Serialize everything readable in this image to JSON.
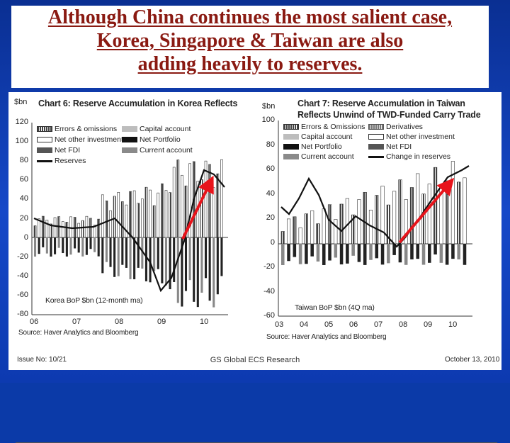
{
  "slide": {
    "title_lines": [
      "Although China continues the most salient case,",
      "Korea, Singapore & Taiwan are also",
      "adding heavily to reserves."
    ]
  },
  "korea": {
    "title": "Chart 6: Reserve Accumulation in Korea Reflects",
    "unit": "$bn",
    "y_ticks": [
      "120",
      "100",
      "80",
      "60",
      "40",
      "20",
      "0",
      "-20",
      "-40",
      "-60",
      "-80"
    ],
    "x_ticks": [
      "06",
      "07",
      "08",
      "09",
      "10"
    ],
    "legend": [
      "Errors & omissions",
      "Net other investment",
      "Net FDI",
      "Reserves",
      "Capital account",
      "Net Portfolio",
      "Current account"
    ],
    "inner_label": "Korea BoP $bn (12-month ma)",
    "source": "Source: Haver Analytics and Bloomberg"
  },
  "taiwan": {
    "title_line1": "Chart 7: Reserve Accumulation in Taiwan",
    "title_line2": "Reflects Unwind of TWD-Funded Carry Trade",
    "unit": "$bn",
    "y_ticks": [
      "100",
      "80",
      "60",
      "40",
      "20",
      "0",
      "-20",
      "-40",
      "-60"
    ],
    "x_ticks": [
      "03",
      "04",
      "05",
      "06",
      "07",
      "08",
      "09",
      "10"
    ],
    "legend": [
      "Errors & Omissions",
      "Capital account",
      "Net Portfolio",
      "Current account",
      "Derivatives",
      "Net other investment",
      "Net FDI",
      "Change in reserves"
    ],
    "inner_label": "Taiwan BoP $bn (4Q ma)",
    "source": "Source: Haver Analytics and Bloomberg"
  },
  "footer": {
    "issue": "Issue No: 10/21",
    "center": "GS Global ECS Research",
    "date": "October 13, 2010"
  },
  "colors": {
    "title": "#8a1a12",
    "arrow": "#e8141b",
    "background": "#0b3aa8"
  }
}
